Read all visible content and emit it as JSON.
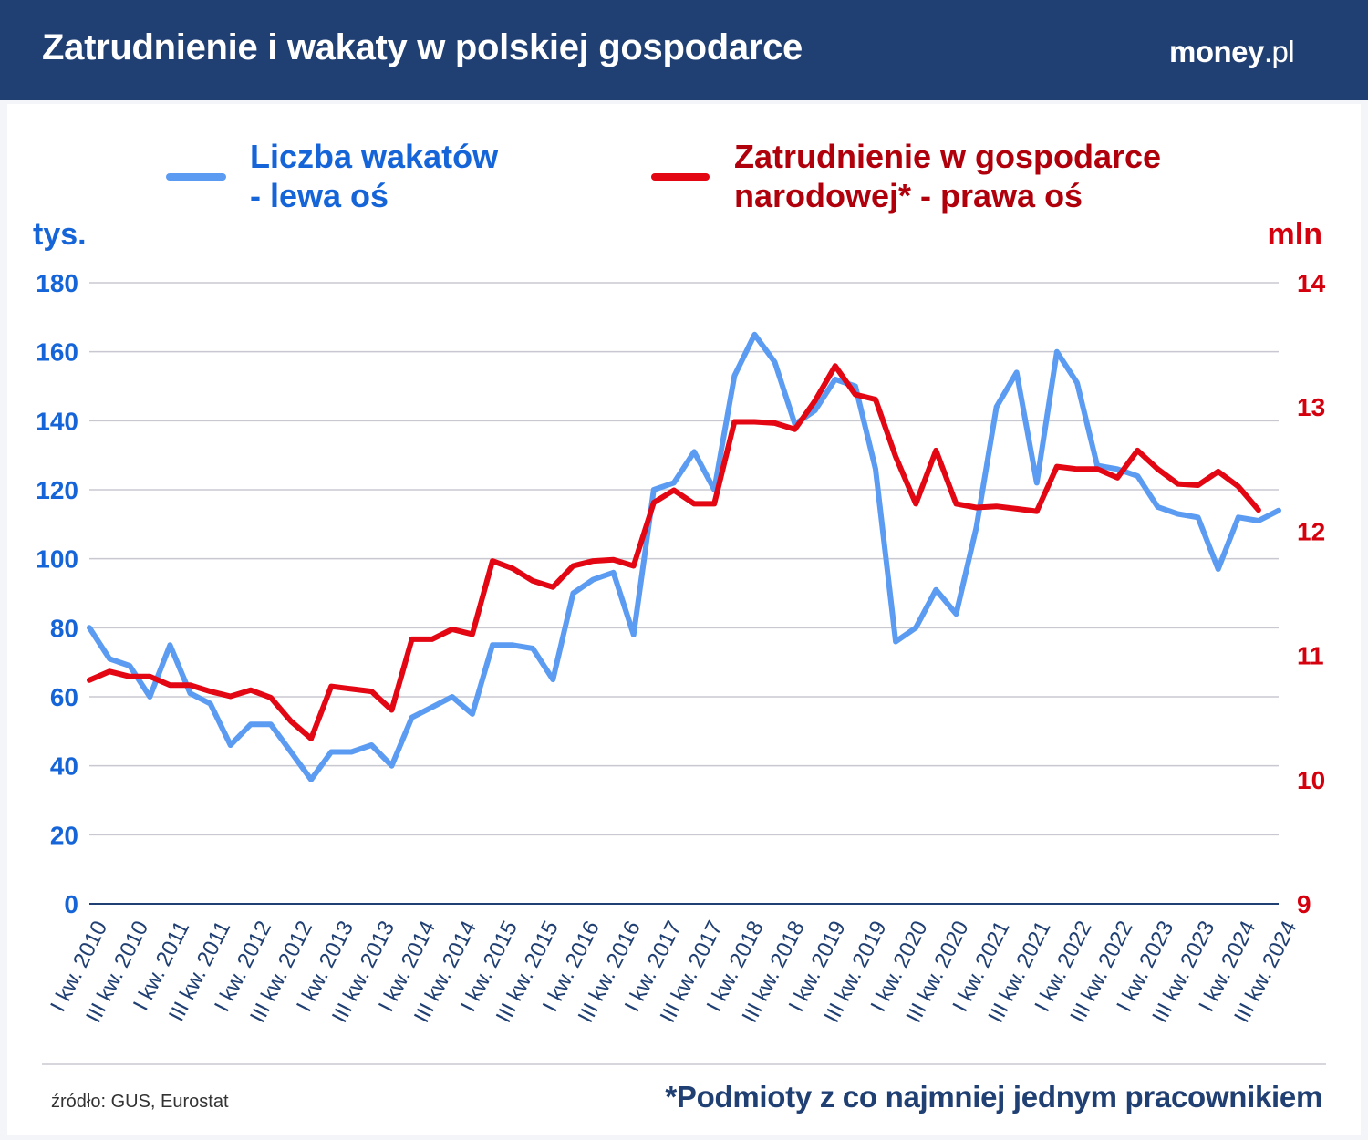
{
  "header": {
    "title": "Zatrudnienie i wakaty w polskiej gospodarce",
    "logo_main": "money",
    "logo_suffix": ".pl"
  },
  "footer": {
    "source": "źródło: GUS, Eurostat",
    "note": "*Podmioty z co najmniej jednym pracownikiem"
  },
  "colors": {
    "header_bg": "#203f72",
    "left_series": "#5b9cf2",
    "right_series": "#e30613",
    "left_axis_text": "#1565d8",
    "right_axis_text": "#d4000d",
    "legend_left_text": "#1565d8",
    "legend_right_text": "#b0000b",
    "grid": "#c8c8d0",
    "baseline": "#203f72"
  },
  "chart_data": {
    "type": "line",
    "legend": [
      {
        "line1": "Liczba wakatów",
        "line2": "- lewa oś"
      },
      {
        "line1": "Zatrudnienie w gospodarce",
        "line2": "narodowej* - prawa oś"
      }
    ],
    "legend_position": "top",
    "grid": true,
    "y_left": {
      "unit_label": "tys.",
      "range": [
        0,
        180
      ],
      "ticks": [
        0,
        20,
        40,
        60,
        80,
        100,
        120,
        140,
        160,
        180
      ]
    },
    "y_right": {
      "unit_label": "mln",
      "range": [
        9,
        14
      ],
      "ticks": [
        9,
        10,
        11,
        12,
        13,
        14
      ]
    },
    "x_tick_labels": [
      "I kw. 2010",
      "III kw. 2010",
      "I kw. 2011",
      "III kw. 2011",
      "I kw. 2012",
      "III kw. 2012",
      "I kw. 2013",
      "III kw. 2013",
      "I kw. 2014",
      "III kw. 2014",
      "I kw. 2015",
      "III kw. 2015",
      "I kw. 2016",
      "III kw. 2016",
      "I kw. 2017",
      "III kw. 2017",
      "I kw. 2018",
      "III kw. 2018",
      "I kw. 2019",
      "III kw. 2019",
      "I kw. 2020",
      "III kw. 2020",
      "I kw. 2021",
      "III kw. 2021",
      "I kw. 2022",
      "III kw. 2022",
      "I kw. 2023",
      "III kw. 2023",
      "I kw. 2024",
      "III kw. 2024"
    ],
    "series": [
      {
        "name": "Liczba wakatów - lewa oś",
        "axis": "left",
        "values": [
          80,
          71,
          69,
          60,
          75,
          61,
          58,
          46,
          52,
          52,
          44,
          36,
          44,
          44,
          46,
          40,
          54,
          57,
          60,
          55,
          75,
          75,
          74,
          65,
          90,
          94,
          96,
          78,
          120,
          122,
          131,
          120,
          153,
          165,
          157,
          139,
          143,
          152,
          150,
          126,
          76,
          80,
          91,
          84,
          109,
          144,
          154,
          122,
          160,
          151,
          127,
          126,
          124,
          115,
          113,
          112,
          97,
          112,
          111,
          114
        ]
      },
      {
        "name": "Zatrudnienie w gospodarce narodowej* - prawa oś",
        "axis": "right",
        "values": [
          10.8,
          10.87,
          10.83,
          10.83,
          10.76,
          10.76,
          10.71,
          10.67,
          10.72,
          10.66,
          10.47,
          10.33,
          10.75,
          10.73,
          10.71,
          10.56,
          11.13,
          11.13,
          11.21,
          11.17,
          11.76,
          11.7,
          11.6,
          11.55,
          11.72,
          11.76,
          11.77,
          11.72,
          12.23,
          12.33,
          12.22,
          12.22,
          12.88,
          12.88,
          12.87,
          12.82,
          13.05,
          13.33,
          13.1,
          13.06,
          12.6,
          12.22,
          12.65,
          12.22,
          12.19,
          12.2,
          12.18,
          12.16,
          12.52,
          12.5,
          12.5,
          12.43,
          12.65,
          12.5,
          12.38,
          12.37,
          12.48,
          12.36,
          12.17
        ]
      }
    ]
  }
}
